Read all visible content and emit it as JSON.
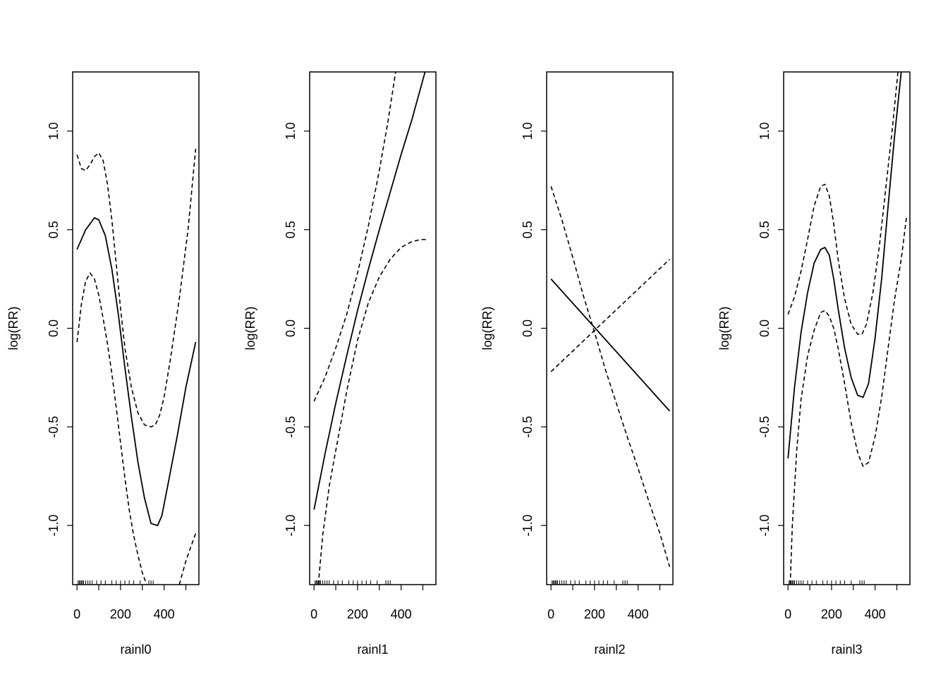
{
  "chart_data": [
    {
      "type": "line",
      "xlabel": "rainl0",
      "ylabel": "log(RR)",
      "xlim": [
        -20,
        560
      ],
      "ylim": [
        -1.3,
        1.3
      ],
      "xticks": [
        0,
        100,
        200,
        300,
        400,
        500
      ],
      "xtick_labels": [
        "0",
        "",
        "200",
        "",
        "400",
        ""
      ],
      "yticks": [
        -1.0,
        -0.5,
        0.0,
        0.5,
        1.0
      ],
      "ytick_labels": [
        "-1.0",
        "-0.5",
        "0.0",
        "0.5",
        "1.0"
      ],
      "rug": [
        5,
        10,
        15,
        20,
        25,
        30,
        40,
        50,
        60,
        70,
        90,
        110,
        130,
        160,
        180,
        200,
        220,
        240,
        260,
        290,
        330,
        340,
        350
      ],
      "series": [
        {
          "style": "solid",
          "x": [
            0,
            40,
            80,
            100,
            130,
            160,
            190,
            220,
            250,
            280,
            310,
            340,
            370,
            390,
            420,
            460,
            500,
            545
          ],
          "y": [
            0.4,
            0.5,
            0.56,
            0.55,
            0.47,
            0.3,
            0.07,
            -0.2,
            -0.45,
            -0.68,
            -0.86,
            -0.99,
            -1.0,
            -0.95,
            -0.78,
            -0.55,
            -0.3,
            -0.07
          ]
        },
        {
          "style": "dashed",
          "x": [
            0,
            20,
            40,
            60,
            80,
            100,
            120,
            140,
            160,
            180,
            200,
            220,
            250,
            280,
            310,
            340,
            360,
            380,
            400,
            430,
            470,
            510,
            545
          ],
          "y": [
            0.88,
            0.81,
            0.8,
            0.83,
            0.87,
            0.89,
            0.85,
            0.73,
            0.55,
            0.33,
            0.1,
            -0.1,
            -0.3,
            -0.43,
            -0.49,
            -0.5,
            -0.49,
            -0.44,
            -0.35,
            -0.15,
            0.15,
            0.5,
            0.91
          ]
        },
        {
          "style": "dashed",
          "x": [
            0,
            20,
            40,
            60,
            80,
            100,
            120,
            140,
            160,
            180,
            200,
            220,
            240,
            260,
            280,
            300,
            320
          ],
          "y": [
            -0.07,
            0.12,
            0.24,
            0.28,
            0.25,
            0.17,
            0.05,
            -0.08,
            -0.23,
            -0.4,
            -0.58,
            -0.76,
            -0.92,
            -1.05,
            -1.15,
            -1.24,
            -1.3
          ]
        },
        {
          "style": "dashed",
          "x": [
            470,
            500,
            545
          ],
          "y": [
            -1.3,
            -1.18,
            -1.04
          ]
        }
      ]
    },
    {
      "type": "line",
      "xlabel": "rainl1",
      "ylabel": "log(RR)",
      "xlim": [
        -20,
        560
      ],
      "ylim": [
        -1.3,
        1.3
      ],
      "xticks": [
        0,
        100,
        200,
        300,
        400,
        500
      ],
      "xtick_labels": [
        "0",
        "",
        "200",
        "",
        "400",
        ""
      ],
      "yticks": [
        -1.0,
        -0.5,
        0.0,
        0.5,
        1.0
      ],
      "ytick_labels": [
        "-1.0",
        "-0.5",
        "0.0",
        "0.5",
        "1.0"
      ],
      "rug": [
        5,
        10,
        15,
        20,
        25,
        30,
        40,
        50,
        60,
        70,
        90,
        110,
        130,
        160,
        180,
        200,
        220,
        240,
        260,
        290,
        330,
        340,
        350
      ],
      "series": [
        {
          "style": "solid",
          "x": [
            0,
            50,
            100,
            150,
            200,
            250,
            300,
            350,
            400,
            450,
            510
          ],
          "y": [
            -0.92,
            -0.64,
            -0.38,
            -0.14,
            0.09,
            0.3,
            0.5,
            0.69,
            0.88,
            1.06,
            1.3
          ]
        },
        {
          "style": "dashed",
          "x": [
            0,
            50,
            100,
            150,
            200,
            250,
            300,
            340,
            375
          ],
          "y": [
            -0.37,
            -0.25,
            -0.1,
            0.07,
            0.28,
            0.52,
            0.8,
            1.05,
            1.3
          ]
        },
        {
          "style": "dashed",
          "x": [
            20,
            40,
            70,
            100,
            150,
            200,
            250,
            300,
            350,
            400,
            450,
            490,
            520
          ],
          "y": [
            -1.3,
            -1.05,
            -0.8,
            -0.62,
            -0.32,
            -0.06,
            0.13,
            0.26,
            0.35,
            0.41,
            0.44,
            0.45,
            0.45
          ]
        }
      ]
    },
    {
      "type": "line",
      "xlabel": "rainl2",
      "ylabel": "log(RR)",
      "xlim": [
        -20,
        560
      ],
      "ylim": [
        -1.3,
        1.3
      ],
      "xticks": [
        0,
        100,
        200,
        300,
        400,
        500
      ],
      "xtick_labels": [
        "0",
        "",
        "200",
        "",
        "400",
        ""
      ],
      "yticks": [
        -1.0,
        -0.5,
        0.0,
        0.5,
        1.0
      ],
      "ytick_labels": [
        "-1.0",
        "-0.5",
        "0.0",
        "0.5",
        "1.0"
      ],
      "rug": [
        5,
        10,
        15,
        20,
        25,
        30,
        40,
        50,
        60,
        70,
        90,
        110,
        130,
        160,
        180,
        200,
        220,
        240,
        260,
        290,
        330,
        340,
        350
      ],
      "series": [
        {
          "style": "solid",
          "x": [
            0,
            545
          ],
          "y": [
            0.25,
            -0.42
          ]
        },
        {
          "style": "dashed",
          "x": [
            0,
            545
          ],
          "y": [
            -0.22,
            0.35
          ]
        },
        {
          "style": "dashed",
          "x": [
            0,
            50,
            100,
            150,
            200,
            250,
            300,
            350,
            400,
            450,
            500,
            545
          ],
          "y": [
            0.72,
            0.55,
            0.36,
            0.16,
            -0.02,
            -0.21,
            -0.38,
            -0.55,
            -0.71,
            -0.88,
            -1.04,
            -1.21
          ]
        }
      ]
    },
    {
      "type": "line",
      "xlabel": "rainl3",
      "ylabel": "log(RR)",
      "xlim": [
        -20,
        560
      ],
      "ylim": [
        -1.3,
        1.3
      ],
      "xticks": [
        0,
        100,
        200,
        300,
        400,
        500
      ],
      "xtick_labels": [
        "0",
        "",
        "200",
        "",
        "400",
        ""
      ],
      "yticks": [
        -1.0,
        -0.5,
        0.0,
        0.5,
        1.0
      ],
      "ytick_labels": [
        "-1.0",
        "-0.5",
        "0.0",
        "0.5",
        "1.0"
      ],
      "rug": [
        5,
        10,
        15,
        20,
        25,
        30,
        40,
        50,
        60,
        70,
        90,
        110,
        130,
        160,
        180,
        200,
        220,
        240,
        260,
        290,
        330,
        340,
        350
      ],
      "series": [
        {
          "style": "solid",
          "x": [
            0,
            30,
            60,
            90,
            120,
            150,
            170,
            190,
            210,
            230,
            260,
            290,
            320,
            345,
            370,
            400,
            430,
            460,
            490,
            520
          ],
          "y": [
            -0.66,
            -0.3,
            -0.02,
            0.18,
            0.33,
            0.4,
            0.41,
            0.37,
            0.25,
            0.1,
            -0.1,
            -0.25,
            -0.34,
            -0.35,
            -0.28,
            -0.05,
            0.25,
            0.62,
            0.98,
            1.3
          ]
        },
        {
          "style": "dashed",
          "x": [
            0,
            30,
            60,
            90,
            120,
            150,
            170,
            190,
            210,
            230,
            260,
            290,
            320,
            340,
            360,
            390,
            420,
            450,
            480,
            505
          ],
          "y": [
            0.07,
            0.16,
            0.29,
            0.45,
            0.62,
            0.72,
            0.73,
            0.67,
            0.53,
            0.35,
            0.15,
            0.02,
            -0.03,
            -0.03,
            0.02,
            0.18,
            0.42,
            0.72,
            1.02,
            1.3
          ]
        },
        {
          "style": "dashed",
          "x": [
            10,
            20,
            40,
            60,
            90,
            120,
            150,
            170,
            190,
            210,
            230,
            260,
            290,
            320,
            345,
            370,
            400,
            430,
            460,
            490,
            520,
            545
          ],
          "y": [
            -1.3,
            -1.0,
            -0.62,
            -0.36,
            -0.14,
            -0.01,
            0.08,
            0.09,
            0.06,
            0.0,
            -0.1,
            -0.28,
            -0.48,
            -0.63,
            -0.7,
            -0.68,
            -0.55,
            -0.35,
            -0.1,
            0.15,
            0.35,
            0.57
          ]
        }
      ]
    }
  ]
}
